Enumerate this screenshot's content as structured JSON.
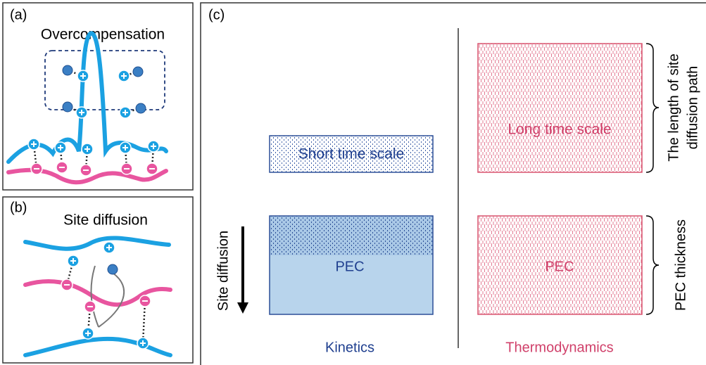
{
  "panels": {
    "a": {
      "label": "(a)",
      "title": "Overcompensation"
    },
    "b": {
      "label": "(b)",
      "title": "Site diffusion"
    },
    "c": {
      "label": "(c)",
      "kinetics": {
        "short_box": "Short time scale",
        "pec_box": "PEC",
        "arrow_label": "Site diffusion",
        "caption": "Kinetics"
      },
      "thermodynamics": {
        "long_box": "Long time scale",
        "pec_box": "PEC",
        "caption": "Thermodynamics"
      },
      "brace_path_label": [
        "The length of site",
        "diffusion path"
      ],
      "brace_thickness_label": "PEC thickness"
    }
  }
}
